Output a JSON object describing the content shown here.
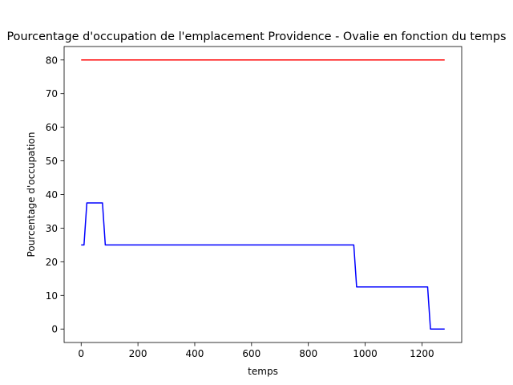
{
  "chart_data": {
    "type": "line",
    "title": "Pourcentage d'occupation de l'emplacement Providence - Ovalie en fonction du temps",
    "xlabel": "temps",
    "ylabel": "Pourcentage d'occupation",
    "xlim": [
      -60,
      1340
    ],
    "ylim": [
      -4,
      84
    ],
    "xticks": [
      0,
      200,
      400,
      600,
      800,
      1000,
      1200
    ],
    "yticks": [
      0,
      10,
      20,
      30,
      40,
      50,
      60,
      70,
      80
    ],
    "grid": false,
    "legend": "none",
    "series": [
      {
        "color": "#ff0000",
        "x": [
          0,
          1280
        ],
        "y": [
          80,
          80
        ]
      },
      {
        "color": "#0000ff",
        "x": [
          0,
          10,
          20,
          75,
          85,
          960,
          970,
          1220,
          1230,
          1280
        ],
        "y": [
          25,
          25,
          37.5,
          37.5,
          25,
          25,
          12.5,
          12.5,
          0,
          0
        ]
      }
    ]
  }
}
